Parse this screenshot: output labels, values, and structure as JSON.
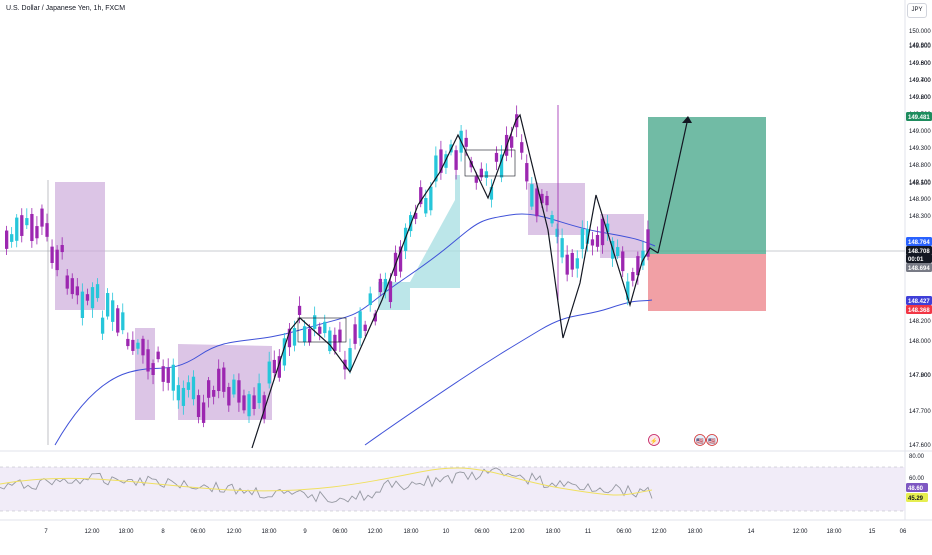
{
  "header": {
    "symbol_title": "U.S. Dollar / Japanese Yen, 1h, FXCM",
    "currency_label": "JPY"
  },
  "colors": {
    "bull": "#26c6da",
    "bear": "#9c27b0",
    "ma": "#3f51d8",
    "target_zone": "#4daa8e",
    "stop_zone": "#ef8f95",
    "cloud_purple": "#c9a6d9",
    "cloud_cyan": "#a6dde2",
    "rsi_band": "#ede7f6",
    "rsi_line": "#9598a1",
    "rsi_signal": "#f0e060"
  },
  "price_axis": {
    "ticks": [
      "150.000",
      "149.800",
      "149.600",
      "149.400",
      "149.200",
      "149.000",
      "148.800",
      "148.500",
      "148.300",
      "148.200",
      "148.000",
      "147.800",
      "147.600"
    ],
    "badges": [
      {
        "name": "target-price-badge",
        "text": "149.481",
        "bg": "#1e8c5e",
        "color": "#ffffff"
      },
      {
        "name": "entry-price-badge",
        "text": "148.764",
        "bg": "#2962ff",
        "color": "#ffffff"
      },
      {
        "name": "last-price-badge",
        "text": "148.708",
        "bg": "#131722",
        "color": "#ffffff"
      },
      {
        "name": "countdown-badge",
        "text": "00:01",
        "bg": "#131722",
        "color": "#ffffff"
      },
      {
        "name": "bid-price-badge",
        "text": "148.694",
        "bg": "#787b86",
        "color": "#ffffff"
      },
      {
        "name": "ma-price-badge",
        "text": "148.427",
        "bg": "#3f3fd8",
        "color": "#ffffff"
      },
      {
        "name": "stop-price-badge",
        "text": "148.368",
        "bg": "#f23645",
        "color": "#ffffff"
      }
    ]
  },
  "rsi_axis": {
    "ticks": [
      "80.00",
      "60.00"
    ],
    "badges": [
      {
        "name": "rsi-value-badge",
        "text": "48.60",
        "bg": "#7e57c2",
        "color": "#ffffff"
      },
      {
        "name": "rsi-signal-badge",
        "text": "45.29",
        "bg": "#e6ee50",
        "color": "#131722"
      }
    ]
  },
  "time_axis": {
    "labels": [
      "7",
      "12:00",
      "18:00",
      "8",
      "06:00",
      "12:00",
      "18:00",
      "9",
      "06:00",
      "12:00",
      "18:00",
      "10",
      "06:00",
      "12:00",
      "18:00",
      "11",
      "06:00",
      "12:00",
      "18:00",
      "14",
      "12:00",
      "18:00",
      "15",
      "06"
    ]
  },
  "event_markers": [
    "⚡",
    "🇺🇸",
    "🇺🇸"
  ]
}
